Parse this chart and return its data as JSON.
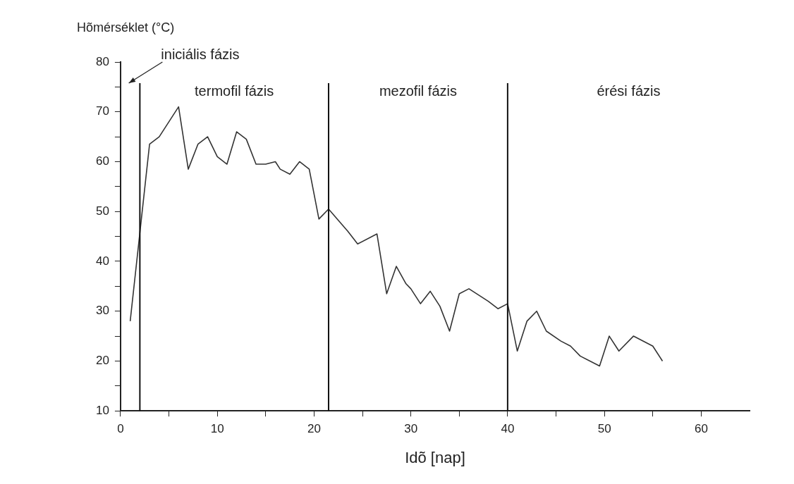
{
  "chart_data": {
    "type": "line",
    "xlabel": "Idõ [nap]",
    "ylabel": "Hõmérséklet (°C)",
    "series": [
      {
        "color": "#333333",
        "x": [
          1,
          3,
          4,
          6,
          7,
          8,
          9,
          10,
          11,
          12,
          13,
          14,
          15,
          16,
          16.5,
          17.5,
          18.5,
          19.5,
          20.5,
          21.5,
          23.5,
          24.5,
          26.5,
          27.5,
          28.5,
          29.5,
          30,
          31,
          32,
          33,
          34,
          35,
          36,
          38,
          39,
          40,
          41,
          42,
          43,
          44,
          45.5,
          46.5,
          47.5,
          49.5,
          50.5,
          51.5,
          53,
          55,
          56
        ],
        "values": [
          28,
          63.5,
          65,
          71,
          58.5,
          63.5,
          65,
          61,
          59.5,
          66,
          64.5,
          59.5,
          59.5,
          60,
          58.5,
          57.5,
          60,
          58.5,
          48.5,
          50.5,
          46,
          43.5,
          45.5,
          33.5,
          39,
          35.5,
          34.5,
          31.5,
          34,
          31,
          26,
          33.5,
          34.5,
          32,
          30.5,
          31.5,
          22,
          28,
          30,
          26,
          24,
          23,
          21,
          19,
          25,
          22,
          25,
          23,
          20
        ]
      }
    ],
    "xlim": [
      0,
      65
    ],
    "xticks": [
      0,
      {
        "value": 5,
        "label": null
      },
      10,
      {
        "value": 15,
        "label": null
      },
      20,
      {
        "value": 25,
        "label": null
      },
      30,
      {
        "value": 35,
        "label": null
      },
      40,
      {
        "value": 45,
        "label": null
      },
      50,
      {
        "value": 55,
        "label": null
      },
      60
    ],
    "ylim": [
      10,
      80
    ],
    "yticks": [
      10,
      {
        "value": 15,
        "label": null
      },
      20,
      {
        "value": 25,
        "label": null
      },
      30,
      {
        "value": 35,
        "label": null
      },
      40,
      {
        "value": 45,
        "label": null
      },
      50,
      {
        "value": 55,
        "label": null
      },
      60,
      {
        "value": 65,
        "label": null
      },
      70,
      {
        "value": 75,
        "label": null
      },
      80
    ],
    "ref_lines": [
      {
        "axis": "x",
        "value": 2,
        "color": "#111111"
      },
      {
        "axis": "x",
        "value": 21.5,
        "color": "#111111"
      },
      {
        "axis": "x",
        "value": 40,
        "color": "#111111"
      }
    ],
    "annotations": [
      "iniciális fázis",
      "termofil fázis",
      "mezofil fázis",
      "érési fázis"
    ],
    "grid": false,
    "legend": false,
    "marker": "none",
    "line_style": "solid"
  }
}
